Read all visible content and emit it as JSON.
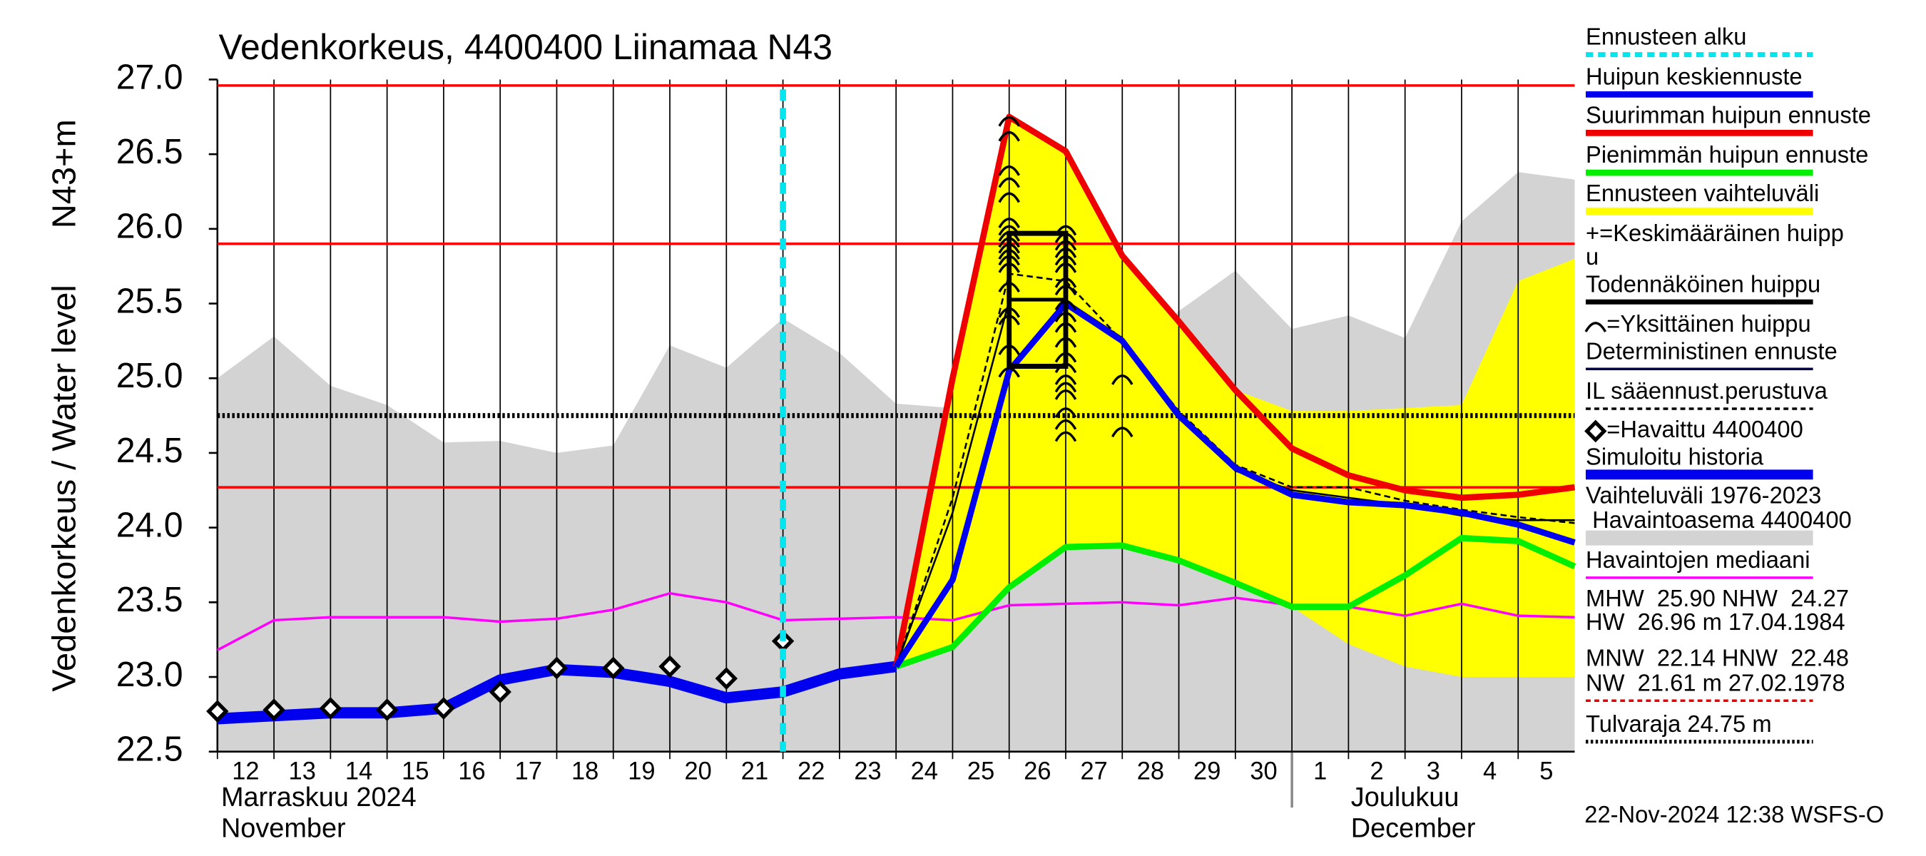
{
  "chart_data": {
    "type": "line",
    "title": "Vedenkorkeus, 4400400 Liinamaa N43",
    "ylabel": "Vedenkorkeus / Water level",
    "yunit": "N43+m",
    "xlim": [
      0,
      24
    ],
    "ylim": [
      22.5,
      27.0
    ],
    "yticks": [
      22.5,
      {
        "value": 23.0,
        "label": "23.0"
      },
      23.5,
      {
        "value": 24.0,
        "label": "24.0"
      },
      24.5,
      {
        "value": 25.0,
        "label": "25.0"
      },
      25.5,
      {
        "value": 26.0,
        "label": "26.0"
      },
      26.5,
      {
        "value": 27.0,
        "label": "27.0"
      }
    ],
    "xticks": [
      {
        "value": 0,
        "label": "12"
      },
      {
        "value": 1,
        "label": "13"
      },
      {
        "value": 2,
        "label": "14"
      },
      {
        "value": 3,
        "label": "15"
      },
      {
        "value": 4,
        "label": "16"
      },
      {
        "value": 5,
        "label": "17"
      },
      {
        "value": 6,
        "label": "18"
      },
      {
        "value": 7,
        "label": "19"
      },
      {
        "value": 8,
        "label": "20"
      },
      {
        "value": 9,
        "label": "21"
      },
      {
        "value": 10,
        "label": "22"
      },
      {
        "value": 11,
        "label": "23"
      },
      {
        "value": 12,
        "label": "24"
      },
      {
        "value": 13,
        "label": "25"
      },
      {
        "value": 14,
        "label": "26"
      },
      {
        "value": 15,
        "label": "27"
      },
      {
        "value": 16,
        "label": "28"
      },
      {
        "value": 17,
        "label": "29"
      },
      {
        "value": 18,
        "label": "30"
      },
      {
        "value": 19,
        "label": "1"
      },
      {
        "value": 20,
        "label": "2"
      },
      {
        "value": 21,
        "label": "3"
      },
      {
        "value": 22,
        "label": "4"
      },
      {
        "value": 23,
        "label": "5"
      }
    ],
    "month_labels": [
      {
        "value": 0,
        "lines": [
          "Marraskuu 2024",
          "November"
        ]
      },
      {
        "value": 19,
        "lines": [
          "Joulukuu",
          "December"
        ]
      }
    ],
    "grid": true,
    "forecast_start": 10,
    "forecast_start_color": "#00e5ee",
    "range_band": {
      "color": "#d3d3d3",
      "x": [
        0,
        1,
        2,
        3,
        4,
        5,
        6,
        7,
        8,
        9,
        10,
        11,
        12,
        13,
        14,
        15,
        16,
        17,
        18,
        19,
        20,
        21,
        22,
        23,
        24
      ],
      "upper": [
        25.0,
        25.28,
        24.95,
        24.82,
        24.57,
        24.58,
        24.5,
        24.55,
        25.22,
        25.07,
        25.4,
        25.17,
        24.83,
        24.8,
        24.8,
        24.9,
        25.05,
        25.45,
        25.72,
        25.33,
        25.42,
        25.27,
        26.05,
        26.38,
        26.33
      ]
    },
    "forecast_band": {
      "color": "#ffff00",
      "x": [
        12,
        13,
        14,
        15,
        16,
        17,
        18,
        19,
        20,
        21,
        22,
        23,
        24
      ],
      "upper": [
        23.07,
        25.0,
        26.75,
        26.52,
        25.82,
        25.38,
        24.92,
        24.78,
        24.78,
        24.8,
        24.82,
        25.65,
        25.8
      ],
      "lower": [
        23.07,
        23.2,
        23.6,
        23.87,
        23.88,
        23.78,
        23.63,
        23.47,
        23.22,
        23.07,
        23.0,
        23.0,
        23.0
      ]
    },
    "ref_lines": [
      {
        "value": 26.96,
        "color": "#ff0000",
        "width": 2
      },
      {
        "value": 25.9,
        "color": "#ff0000",
        "width": 2
      },
      {
        "value": 24.27,
        "color": "#ff0000",
        "width": 2
      },
      {
        "value": 24.75,
        "color": "#000000",
        "width": 4,
        "dash": "2,2"
      }
    ],
    "series": [
      {
        "color": "#ff00ff",
        "width": 2,
        "x": [
          0,
          1,
          2,
          3,
          4,
          5,
          6,
          7,
          8,
          9,
          10,
          11,
          12,
          13,
          14,
          15,
          16,
          17,
          18,
          19,
          20,
          21,
          22,
          23,
          24
        ],
        "values": [
          23.18,
          23.38,
          23.4,
          23.4,
          23.4,
          23.37,
          23.39,
          23.45,
          23.56,
          23.5,
          23.38,
          23.39,
          23.4,
          23.38,
          23.48,
          23.49,
          23.5,
          23.48,
          23.53,
          23.48,
          23.47,
          23.41,
          23.49,
          23.41,
          23.4
        ]
      },
      {
        "color": "#0000ee",
        "width": 9,
        "x": [
          0,
          1,
          2,
          3,
          4,
          5,
          6,
          7,
          8,
          9,
          10,
          11,
          12
        ],
        "values": [
          22.72,
          22.74,
          22.76,
          22.76,
          22.79,
          22.98,
          23.05,
          23.03,
          22.97,
          22.86,
          22.9,
          23.02,
          23.07
        ]
      },
      {
        "color": "#00ee00",
        "width": 5,
        "x": [
          12,
          13,
          14,
          15,
          16,
          17,
          18,
          19,
          20,
          21,
          22,
          23,
          24
        ],
        "values": [
          23.07,
          23.2,
          23.6,
          23.87,
          23.88,
          23.78,
          23.63,
          23.47,
          23.47,
          23.68,
          23.93,
          23.91,
          23.74
        ]
      },
      {
        "color": "#ee0000",
        "width": 5,
        "x": [
          12,
          13,
          14,
          15,
          16,
          17,
          18,
          19,
          20,
          21,
          22,
          23,
          24
        ],
        "values": [
          23.07,
          25.0,
          26.75,
          26.52,
          25.82,
          25.38,
          24.92,
          24.53,
          24.35,
          24.25,
          24.2,
          24.22,
          24.27
        ]
      },
      {
        "color": "#000000",
        "width": 1.5,
        "x": [
          12,
          13,
          14,
          15,
          16,
          17,
          18,
          19,
          20,
          21,
          22,
          23,
          24
        ],
        "values": [
          23.07,
          24.1,
          25.52,
          25.52,
          25.27,
          24.75,
          24.38,
          24.25,
          24.2,
          24.15,
          24.08,
          24.05,
          24.05
        ]
      },
      {
        "color": "#000000",
        "width": 1.5,
        "dash": "5,3",
        "x": [
          12,
          13,
          14,
          15,
          16,
          17,
          18,
          19,
          20,
          21,
          22,
          23,
          24
        ],
        "values": [
          23.07,
          24.2,
          25.7,
          25.65,
          25.25,
          24.78,
          24.42,
          24.27,
          24.27,
          24.18,
          24.12,
          24.07,
          24.03
        ]
      },
      {
        "color": "#0000ee",
        "width": 5,
        "x": [
          12,
          13,
          14,
          15,
          16,
          17,
          18,
          19,
          20,
          21,
          22,
          23,
          24
        ],
        "values": [
          23.07,
          23.65,
          25.05,
          25.5,
          25.25,
          24.75,
          24.4,
          24.22,
          24.17,
          24.15,
          24.1,
          24.02,
          23.9
        ]
      }
    ],
    "peak_box": {
      "x": [
        14,
        15
      ],
      "high": 25.97,
      "mid": 25.53,
      "low": 25.08
    },
    "peaks": {
      "x": [
        14,
        14,
        14,
        14,
        14,
        14,
        14,
        14,
        14,
        14,
        14,
        14,
        14,
        14,
        14,
        14,
        14,
        14,
        15,
        15,
        15,
        15,
        15,
        15,
        15,
        15,
        15,
        15,
        15,
        15,
        15,
        15,
        15,
        15,
        15,
        15,
        15,
        15,
        16,
        16
      ],
      "values": [
        26.73,
        26.63,
        26.4,
        26.32,
        26.22,
        26.05,
        26.0,
        25.96,
        25.92,
        25.88,
        25.84,
        25.8,
        25.75,
        25.62,
        25.45,
        25.4,
        25.2,
        25.05,
        26.0,
        25.95,
        25.9,
        25.85,
        25.8,
        25.75,
        25.65,
        25.6,
        25.5,
        25.42,
        25.35,
        25.25,
        25.15,
        25.08,
        25.0,
        24.95,
        24.9,
        24.78,
        24.7,
        24.62,
        25.0,
        24.65
      ]
    },
    "observed": {
      "x": [
        0,
        1,
        2,
        3,
        4,
        5,
        6,
        7,
        8,
        9,
        10
      ],
      "values": [
        22.77,
        22.78,
        22.79,
        22.78,
        22.79,
        22.9,
        23.06,
        23.06,
        23.07,
        22.99,
        23.24
      ]
    },
    "legend": [
      {
        "label": "Ennusteen alku",
        "color": "#00e5ee",
        "width": 4,
        "dash": "6,4"
      },
      {
        "label": "Huipun keskiennuste",
        "color": "#0000ee",
        "width": 5
      },
      {
        "label": "Suurimman huipun ennuste",
        "color": "#ee0000",
        "width": 5
      },
      {
        "label": "Pienimmän huipun ennuste",
        "color": "#00ee00",
        "width": 5
      },
      {
        "label": "Ennusteen vaihteluväli",
        "color": "#ffff00",
        "width": 6
      },
      {
        "label": "+=Keskimääräinen huipp"
      },
      {
        "label": "u"
      },
      {
        "label": "Todennäköinen huippu",
        "color": "#000000",
        "width": 4
      },
      {
        "label": "=Yksittäinen huippu",
        "marker": "arc"
      },
      {
        "label": "Deterministinen ennuste",
        "color": "#000040",
        "width": 2
      },
      {
        "label": "IL sääennust.perustuva",
        "color": "#000000",
        "width": 2,
        "dash": "4,3"
      },
      {
        "label": "=Havaittu 4400400",
        "marker": "diamond"
      },
      {
        "label": "Simuloitu historia",
        "color": "#0000ee",
        "width": 8
      },
      {
        "label": "Vaihteluväli 1976-2023"
      },
      {
        "label": " Havaintoasema 4400400",
        "color": "#d3d3d3",
        "width": 12
      },
      {
        "label": "Havaintojen mediaani",
        "color": "#ff00ff",
        "width": 2
      },
      {
        "label": "MHW  25.90 NHW  24.27"
      },
      {
        "label": "HW  26.96 m 17.04.1984"
      },
      {
        "label": "MNW  22.14 HNW  22.48"
      },
      {
        "label": "NW  21.61 m 27.02.1978",
        "color": "#ee0000",
        "width": 2,
        "dash": "4,3"
      },
      {
        "label": "Tulvaraja 24.75 m",
        "color": "#000000",
        "width": 3,
        "dash": "2,2"
      }
    ],
    "footer": "22-Nov-2024 12:38 WSFS-O"
  }
}
